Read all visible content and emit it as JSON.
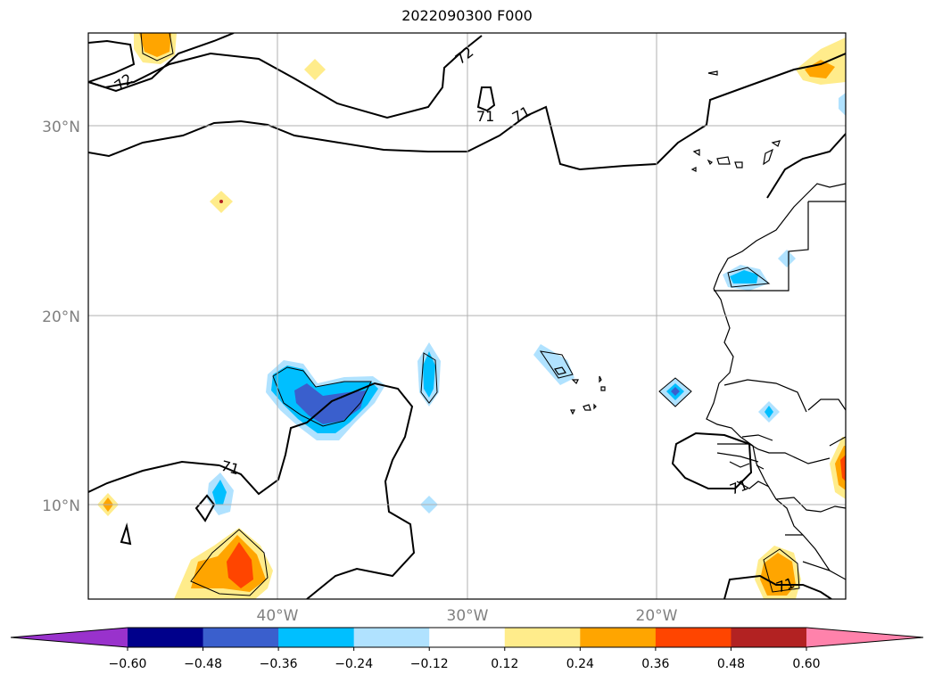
{
  "title": "2022090300 F000",
  "latitude_labels": [
    "30°N",
    "20°N",
    "10°N"
  ],
  "longitude_labels": [
    "40°W",
    "30°W",
    "20°W"
  ],
  "contour_labels": [
    "72",
    "72",
    "71",
    "71",
    "71",
    "71",
    "71"
  ],
  "colorbar": {
    "ticks": [
      "−0.60",
      "−0.48",
      "−0.36",
      "−0.24",
      "−0.12",
      "0.12",
      "0.24",
      "0.36",
      "0.48",
      "0.60"
    ],
    "colors": [
      "#9932cc",
      "#00008b",
      "#3a5fcd",
      "#00bfff",
      "#b0e2ff",
      "#ffffff",
      "#ffec8b",
      "#ffa500",
      "#ff4500",
      "#b22222",
      "#ff82ab"
    ],
    "extend": "both"
  },
  "colors": {
    "gridline": "#b0b0b0",
    "coastline": "#000000"
  }
}
